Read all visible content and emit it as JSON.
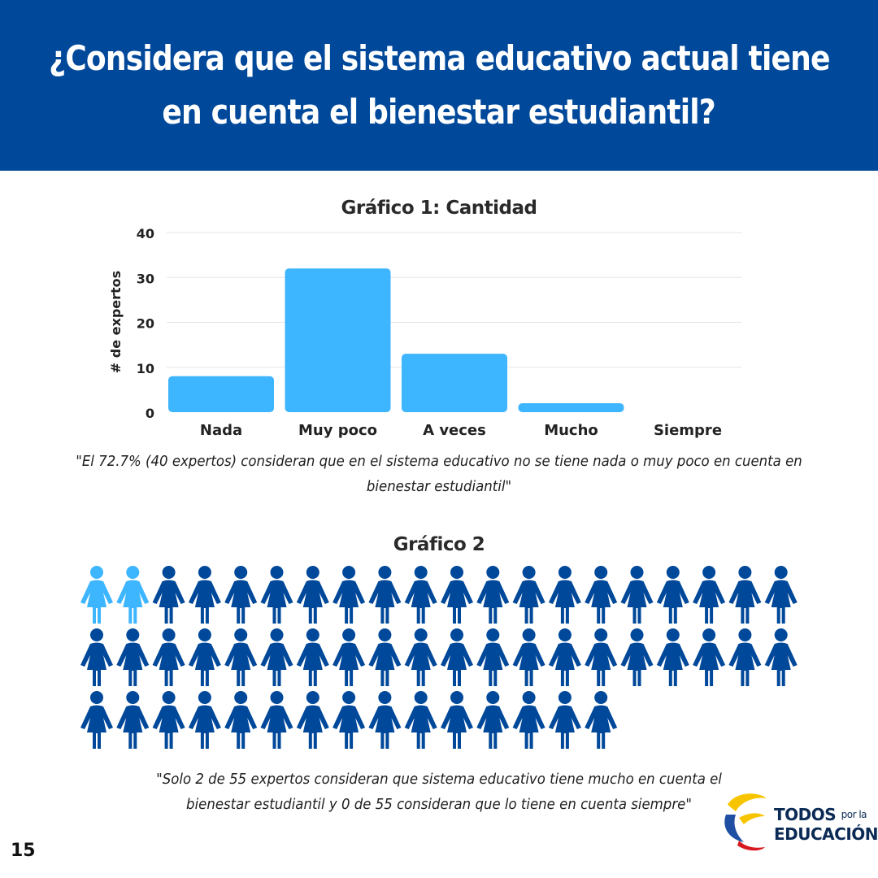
{
  "header": {
    "title_line1": "¿Considera que el sistema educativo actual tiene",
    "title_line2": "en cuenta el bienestar estudiantil?"
  },
  "chart_data": [
    {
      "type": "bar",
      "title": "Gráfico 1: Cantidad",
      "xlabel": "",
      "ylabel": "# de expertos",
      "categories": [
        "Nada",
        "Muy poco",
        "A veces",
        "Mucho",
        "Siempre"
      ],
      "values": [
        8,
        32,
        13,
        2,
        0
      ],
      "ylim": [
        0,
        40
      ],
      "yticks": [
        0,
        10,
        20,
        30,
        40
      ],
      "grid": true,
      "colors": {
        "bar": "#3db5ff"
      }
    },
    {
      "type": "pictogram",
      "title": "Gráfico 2",
      "total": 55,
      "highlighted": 2,
      "per_row": 20,
      "colors": {
        "highlight": "#3db5ff",
        "base": "#00489a"
      }
    }
  ],
  "quote1": {
    "line1": "\"El  72.7% (40 expertos) consideran que en el sistema educativo no se tiene nada o muy poco en cuenta en",
    "line2": "bienestar estudiantil\""
  },
  "quote2": {
    "line1": "\"Solo 2 de 55 expertos consideran que  sistema educativo tiene mucho en cuenta el",
    "line2": "bienestar estudiantil y 0 de 55 consideran que lo tiene en cuenta siempre\""
  },
  "logo": {
    "word1": "TODOS",
    "word2": "por la",
    "word3": "EDUCACIÓN"
  },
  "page_number": "15"
}
